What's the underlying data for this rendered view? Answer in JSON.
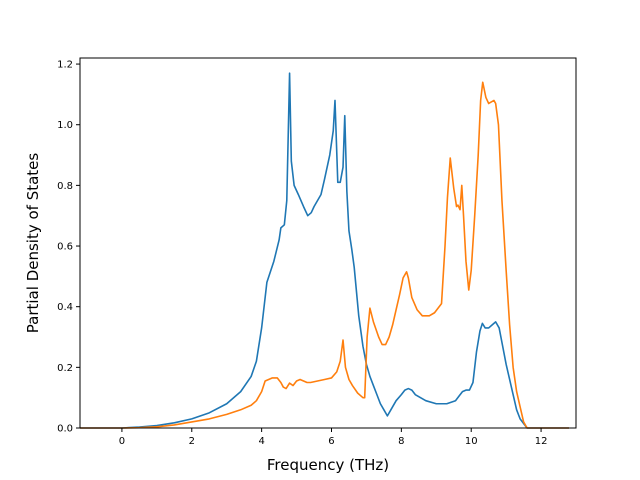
{
  "chart_data": {
    "type": "line",
    "title": "",
    "xlabel": "Frequency (THz)",
    "ylabel": "Partial Density of States",
    "xlim": [
      -1.2,
      13.0
    ],
    "ylim": [
      0,
      1.22
    ],
    "xticks": [
      0,
      2,
      4,
      6,
      8,
      10,
      12
    ],
    "yticks": [
      0.0,
      0.2,
      0.4,
      0.6,
      0.8,
      1.0,
      1.2
    ],
    "grid": false,
    "legend": "none",
    "series": [
      {
        "color": "#1f77b4",
        "points": [
          [
            -1.2,
            0
          ],
          [
            -0.5,
            0
          ],
          [
            0,
            0.0
          ],
          [
            0.5,
            0.003
          ],
          [
            1.0,
            0.008
          ],
          [
            1.5,
            0.017
          ],
          [
            2.0,
            0.03
          ],
          [
            2.5,
            0.05
          ],
          [
            3.0,
            0.08
          ],
          [
            3.4,
            0.12
          ],
          [
            3.7,
            0.17
          ],
          [
            3.85,
            0.22
          ],
          [
            4.0,
            0.33
          ],
          [
            4.1,
            0.43
          ],
          [
            4.15,
            0.48
          ],
          [
            4.35,
            0.55
          ],
          [
            4.5,
            0.62
          ],
          [
            4.55,
            0.66
          ],
          [
            4.65,
            0.67
          ],
          [
            4.72,
            0.75
          ],
          [
            4.8,
            1.17
          ],
          [
            4.85,
            0.88
          ],
          [
            4.93,
            0.8
          ],
          [
            5.05,
            0.77
          ],
          [
            5.2,
            0.73
          ],
          [
            5.32,
            0.7
          ],
          [
            5.42,
            0.71
          ],
          [
            5.5,
            0.73
          ],
          [
            5.7,
            0.77
          ],
          [
            5.8,
            0.82
          ],
          [
            5.95,
            0.9
          ],
          [
            6.05,
            0.98
          ],
          [
            6.1,
            1.08
          ],
          [
            6.18,
            0.81
          ],
          [
            6.25,
            0.81
          ],
          [
            6.33,
            0.86
          ],
          [
            6.38,
            1.03
          ],
          [
            6.44,
            0.78
          ],
          [
            6.5,
            0.65
          ],
          [
            6.58,
            0.59
          ],
          [
            6.65,
            0.53
          ],
          [
            6.78,
            0.37
          ],
          [
            6.9,
            0.27
          ],
          [
            7.0,
            0.21
          ],
          [
            7.1,
            0.17
          ],
          [
            7.2,
            0.14
          ],
          [
            7.3,
            0.11
          ],
          [
            7.4,
            0.08
          ],
          [
            7.5,
            0.06
          ],
          [
            7.6,
            0.04
          ],
          [
            7.7,
            0.06
          ],
          [
            7.85,
            0.09
          ],
          [
            8.0,
            0.11
          ],
          [
            8.1,
            0.125
          ],
          [
            8.2,
            0.13
          ],
          [
            8.3,
            0.125
          ],
          [
            8.4,
            0.11
          ],
          [
            8.55,
            0.1
          ],
          [
            8.7,
            0.09
          ],
          [
            9.0,
            0.08
          ],
          [
            9.3,
            0.08
          ],
          [
            9.55,
            0.09
          ],
          [
            9.65,
            0.105
          ],
          [
            9.75,
            0.12
          ],
          [
            9.85,
            0.125
          ],
          [
            9.95,
            0.125
          ],
          [
            10.05,
            0.15
          ],
          [
            10.15,
            0.25
          ],
          [
            10.25,
            0.32
          ],
          [
            10.32,
            0.345
          ],
          [
            10.4,
            0.33
          ],
          [
            10.5,
            0.33
          ],
          [
            10.6,
            0.34
          ],
          [
            10.7,
            0.35
          ],
          [
            10.8,
            0.33
          ],
          [
            10.9,
            0.27
          ],
          [
            11.0,
            0.21
          ],
          [
            11.1,
            0.16
          ],
          [
            11.2,
            0.11
          ],
          [
            11.3,
            0.06
          ],
          [
            11.4,
            0.03
          ],
          [
            11.5,
            0.015
          ],
          [
            11.6,
            0.0
          ],
          [
            11.8,
            0.0
          ],
          [
            12.8,
            0.0
          ]
        ]
      },
      {
        "color": "#ff7f0e",
        "points": [
          [
            -1.2,
            0
          ],
          [
            -0.5,
            0
          ],
          [
            0,
            0.0
          ],
          [
            0.5,
            0.001
          ],
          [
            1.0,
            0.004
          ],
          [
            1.5,
            0.01
          ],
          [
            2.0,
            0.02
          ],
          [
            2.5,
            0.03
          ],
          [
            3.0,
            0.045
          ],
          [
            3.4,
            0.06
          ],
          [
            3.7,
            0.075
          ],
          [
            3.85,
            0.09
          ],
          [
            4.0,
            0.12
          ],
          [
            4.1,
            0.155
          ],
          [
            4.2,
            0.16
          ],
          [
            4.3,
            0.165
          ],
          [
            4.45,
            0.165
          ],
          [
            4.55,
            0.15
          ],
          [
            4.62,
            0.135
          ],
          [
            4.7,
            0.13
          ],
          [
            4.8,
            0.148
          ],
          [
            4.9,
            0.14
          ],
          [
            5.0,
            0.155
          ],
          [
            5.1,
            0.16
          ],
          [
            5.2,
            0.155
          ],
          [
            5.3,
            0.15
          ],
          [
            5.4,
            0.15
          ],
          [
            5.6,
            0.155
          ],
          [
            5.8,
            0.16
          ],
          [
            6.0,
            0.165
          ],
          [
            6.15,
            0.185
          ],
          [
            6.25,
            0.22
          ],
          [
            6.33,
            0.29
          ],
          [
            6.4,
            0.2
          ],
          [
            6.5,
            0.16
          ],
          [
            6.6,
            0.14
          ],
          [
            6.75,
            0.115
          ],
          [
            6.9,
            0.1
          ],
          [
            6.95,
            0.1
          ],
          [
            7.02,
            0.3
          ],
          [
            7.1,
            0.395
          ],
          [
            7.2,
            0.35
          ],
          [
            7.35,
            0.3
          ],
          [
            7.45,
            0.275
          ],
          [
            7.55,
            0.275
          ],
          [
            7.65,
            0.3
          ],
          [
            7.75,
            0.34
          ],
          [
            7.85,
            0.39
          ],
          [
            7.95,
            0.44
          ],
          [
            8.05,
            0.495
          ],
          [
            8.15,
            0.515
          ],
          [
            8.2,
            0.495
          ],
          [
            8.3,
            0.43
          ],
          [
            8.45,
            0.39
          ],
          [
            8.6,
            0.37
          ],
          [
            8.8,
            0.37
          ],
          [
            8.95,
            0.38
          ],
          [
            9.15,
            0.41
          ],
          [
            9.25,
            0.6
          ],
          [
            9.32,
            0.76
          ],
          [
            9.4,
            0.89
          ],
          [
            9.5,
            0.79
          ],
          [
            9.58,
            0.73
          ],
          [
            9.62,
            0.735
          ],
          [
            9.68,
            0.72
          ],
          [
            9.73,
            0.8
          ],
          [
            9.78,
            0.7
          ],
          [
            9.85,
            0.55
          ],
          [
            9.93,
            0.455
          ],
          [
            10.0,
            0.52
          ],
          [
            10.1,
            0.7
          ],
          [
            10.2,
            0.9
          ],
          [
            10.27,
            1.08
          ],
          [
            10.33,
            1.14
          ],
          [
            10.42,
            1.09
          ],
          [
            10.5,
            1.07
          ],
          [
            10.65,
            1.08
          ],
          [
            10.7,
            1.07
          ],
          [
            10.78,
            1.0
          ],
          [
            10.88,
            0.75
          ],
          [
            11.0,
            0.52
          ],
          [
            11.1,
            0.34
          ],
          [
            11.2,
            0.2
          ],
          [
            11.3,
            0.12
          ],
          [
            11.4,
            0.07
          ],
          [
            11.5,
            0.02
          ],
          [
            11.6,
            0.0
          ],
          [
            11.8,
            0.0
          ],
          [
            12.8,
            0.0
          ]
        ]
      }
    ]
  }
}
